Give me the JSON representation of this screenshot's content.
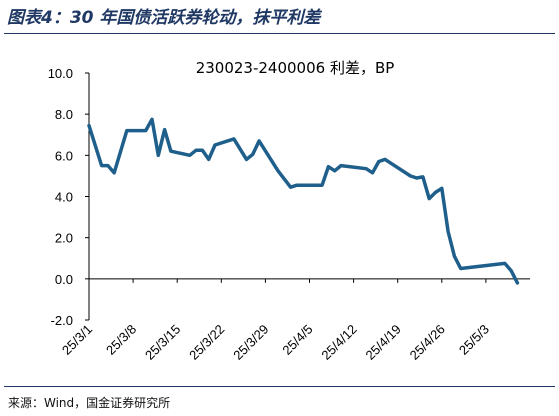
{
  "figure_title": "图表4：30 年国债活跃券轮动，抹平利差",
  "source": "来源：Wind，国金证券研究所",
  "chart_data": {
    "type": "line",
    "title": "230023-2400006 利差，BP",
    "xlabel": "",
    "ylabel": "",
    "ylim": [
      -2.0,
      10.0
    ],
    "ytick_labels": [
      "10.0",
      "8.0",
      "6.0",
      "4.0",
      "2.0",
      "0.0",
      "-2.0"
    ],
    "ytick_values": [
      10,
      8,
      6,
      4,
      2,
      0,
      -2
    ],
    "xtick_labels": [
      "25/3/1",
      "25/3/8",
      "25/3/15",
      "25/3/22",
      "25/3/29",
      "25/4/5",
      "25/4/12",
      "25/4/19",
      "25/4/26",
      "25/5/3"
    ],
    "x_start": "2025-03-01",
    "x_end": "2025-05-10",
    "grid": false,
    "series": [
      {
        "color": "#1f5f8b",
        "points": [
          [
            "2025-03-01",
            7.45
          ],
          [
            "2025-03-03",
            5.5
          ],
          [
            "2025-03-04",
            5.5
          ],
          [
            "2025-03-05",
            5.15
          ],
          [
            "2025-03-07",
            7.2
          ],
          [
            "2025-03-10",
            7.2
          ],
          [
            "2025-03-11",
            7.75
          ],
          [
            "2025-03-12",
            6.0
          ],
          [
            "2025-03-13",
            7.25
          ],
          [
            "2025-03-14",
            6.2
          ],
          [
            "2025-03-17",
            6.0
          ],
          [
            "2025-03-18",
            6.25
          ],
          [
            "2025-03-19",
            6.25
          ],
          [
            "2025-03-20",
            5.8
          ],
          [
            "2025-03-21",
            6.5
          ],
          [
            "2025-03-24",
            6.8
          ],
          [
            "2025-03-25",
            6.3
          ],
          [
            "2025-03-26",
            5.8
          ],
          [
            "2025-03-27",
            6.05
          ],
          [
            "2025-03-28",
            6.7
          ],
          [
            "2025-03-31",
            5.25
          ],
          [
            "2025-04-02",
            4.45
          ],
          [
            "2025-04-03",
            4.55
          ],
          [
            "2025-04-07",
            4.55
          ],
          [
            "2025-04-08",
            5.45
          ],
          [
            "2025-04-09",
            5.25
          ],
          [
            "2025-04-10",
            5.5
          ],
          [
            "2025-04-14",
            5.35
          ],
          [
            "2025-04-15",
            5.15
          ],
          [
            "2025-04-16",
            5.7
          ],
          [
            "2025-04-17",
            5.8
          ],
          [
            "2025-04-18",
            5.6
          ],
          [
            "2025-04-21",
            5.0
          ],
          [
            "2025-04-22",
            4.9
          ],
          [
            "2025-04-23",
            4.95
          ],
          [
            "2025-04-24",
            3.9
          ],
          [
            "2025-04-25",
            4.2
          ],
          [
            "2025-04-26",
            4.4
          ],
          [
            "2025-04-27",
            2.3
          ],
          [
            "2025-04-28",
            1.1
          ],
          [
            "2025-04-29",
            0.5
          ],
          [
            "2025-05-06",
            0.75
          ],
          [
            "2025-05-07",
            0.4
          ],
          [
            "2025-05-08",
            -0.2
          ]
        ]
      }
    ]
  }
}
